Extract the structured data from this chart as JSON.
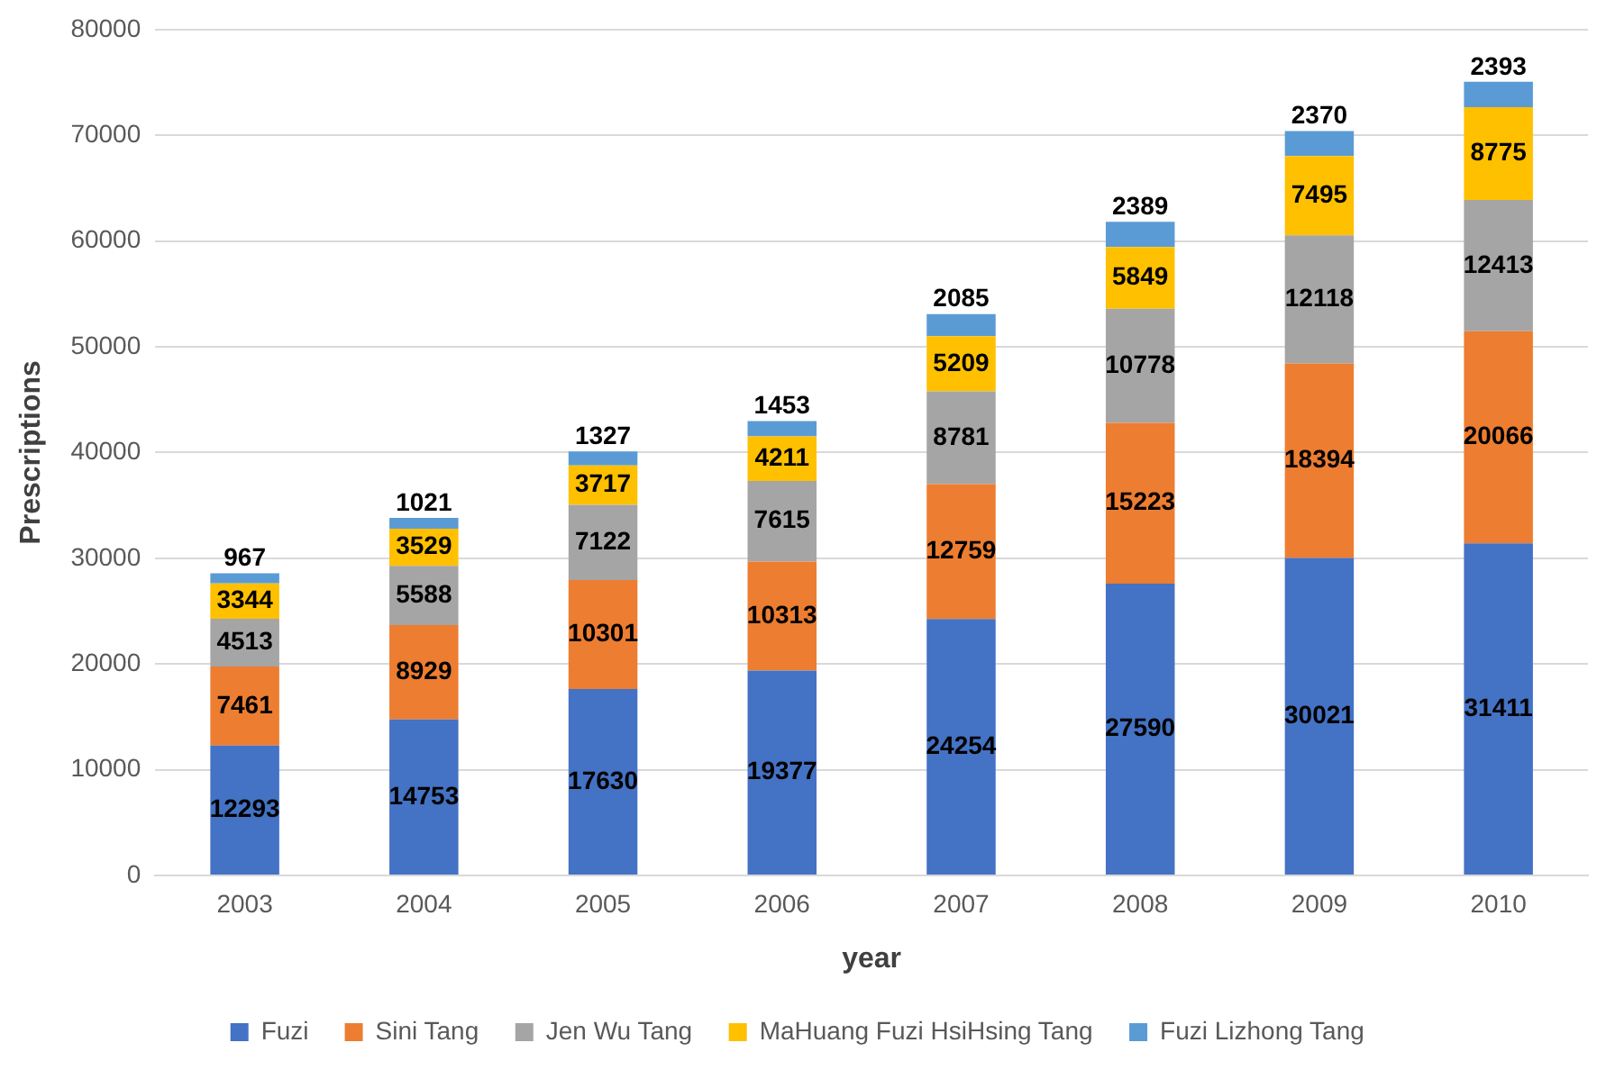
{
  "chart_data": {
    "type": "bar",
    "stacked": true,
    "xlabel": "year",
    "ylabel": "Prescriptions",
    "categories": [
      "2003",
      "2004",
      "2005",
      "2006",
      "2007",
      "2008",
      "2009",
      "2010"
    ],
    "series": [
      {
        "name": "Fuzi",
        "color": "#4472c4",
        "values": [
          12293,
          14753,
          17630,
          19377,
          24254,
          27590,
          30021,
          31411
        ]
      },
      {
        "name": "Sini Tang",
        "color": "#ed7d31",
        "values": [
          7461,
          8929,
          10301,
          10313,
          12759,
          15223,
          18394,
          20066
        ]
      },
      {
        "name": "Jen Wu Tang",
        "color": "#a5a5a5",
        "values": [
          4513,
          5588,
          7122,
          7615,
          8781,
          10778,
          12118,
          12413
        ]
      },
      {
        "name": "MaHuang Fuzi HsiHsing Tang",
        "color": "#ffc000",
        "values": [
          3344,
          3529,
          3717,
          4211,
          5209,
          5849,
          7495,
          8775
        ]
      },
      {
        "name": "Fuzi Lizhong Tang",
        "color": "#5b9bd5",
        "values": [
          967,
          1021,
          1327,
          1453,
          2085,
          2389,
          2370,
          2393
        ]
      }
    ],
    "ylim": [
      0,
      80000
    ],
    "yticks": [
      0,
      10000,
      20000,
      30000,
      40000,
      50000,
      60000,
      70000,
      80000
    ],
    "grid": "y",
    "legend": "bottom",
    "data_labels": true
  }
}
